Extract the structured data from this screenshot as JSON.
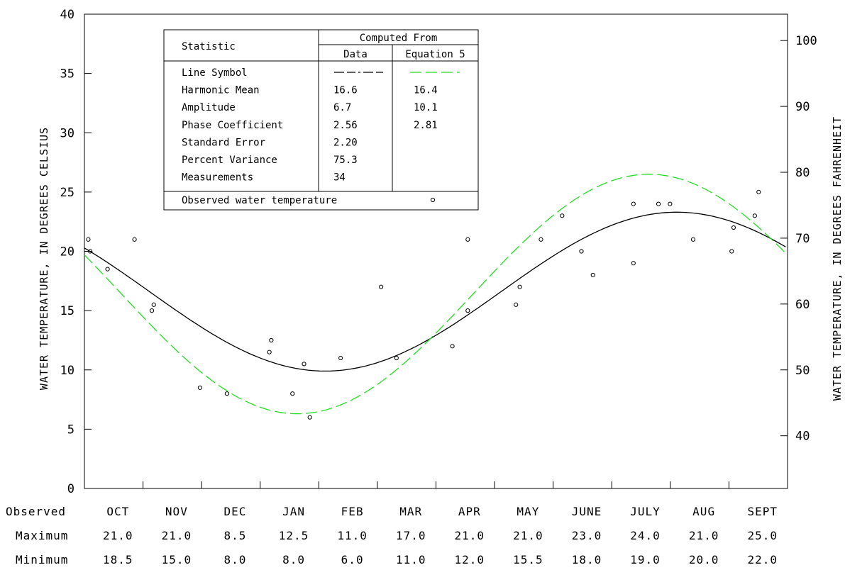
{
  "chart_data": {
    "type": "line",
    "ylabel_left": "WATER TEMPERATURE, IN DEGREES CELSIUS",
    "ylabel_right": "WATER TEMPERATURE, IN DEGREES FAHRENHEIT",
    "ylim": [
      0,
      40
    ],
    "yticks_left": [
      "0",
      "5",
      "10",
      "15",
      "20",
      "25",
      "30",
      "35",
      "40"
    ],
    "yticks_right": [
      "40",
      "50",
      "60",
      "70",
      "80",
      "90",
      "100"
    ],
    "months": [
      "OCT",
      "NOV",
      "DEC",
      "JAN",
      "FEB",
      "MAR",
      "APR",
      "MAY",
      "JUNE",
      "JULY",
      "AUG",
      "SEPT"
    ],
    "xlim_days": [
      0,
      365
    ],
    "series": [
      {
        "name": "Data",
        "mean": 16.6,
        "amplitude": 6.7,
        "phase": 2.56,
        "color": "#000000",
        "values": [
          [
            0,
            20.2
          ],
          [
            30,
            17.0
          ],
          [
            60,
            13.3
          ],
          [
            91,
            10.8
          ],
          [
            121,
            10.1
          ],
          [
            152,
            11.5
          ],
          [
            182,
            14.7
          ],
          [
            213,
            18.4
          ],
          [
            243,
            21.5
          ],
          [
            274,
            23.3
          ],
          [
            304,
            23.3
          ],
          [
            334,
            21.4
          ],
          [
            365,
            20.2
          ]
        ]
      },
      {
        "name": "Equation 5",
        "mean": 16.4,
        "amplitude": 10.1,
        "phase": 2.81,
        "color": "#22dd22",
        "values": [
          [
            0,
            19.7
          ],
          [
            30,
            14.3
          ],
          [
            60,
            9.3
          ],
          [
            91,
            6.6
          ],
          [
            121,
            6.8
          ],
          [
            152,
            10.0
          ],
          [
            182,
            15.3
          ],
          [
            213,
            21.1
          ],
          [
            243,
            25.5
          ],
          [
            274,
            26.5
          ],
          [
            304,
            24.0
          ],
          [
            334,
            19.3
          ],
          [
            365,
            19.7
          ]
        ]
      }
    ],
    "observations": {
      "name": "Observed water temperature",
      "points": [
        [
          2,
          21.0
        ],
        [
          3,
          20.0
        ],
        [
          12,
          18.5
        ],
        [
          26,
          21.0
        ],
        [
          35,
          15.0
        ],
        [
          36,
          15.5
        ],
        [
          60,
          8.5
        ],
        [
          74,
          8.0
        ],
        [
          96,
          11.5
        ],
        [
          97,
          12.5
        ],
        [
          108,
          8.0
        ],
        [
          114,
          10.5
        ],
        [
          117,
          6.0
        ],
        [
          133,
          11.0
        ],
        [
          154,
          17.0
        ],
        [
          162,
          11.0
        ],
        [
          191,
          12.0
        ],
        [
          199,
          21.0
        ],
        [
          199,
          15.0
        ],
        [
          224,
          15.5
        ],
        [
          226,
          17.0
        ],
        [
          237,
          21.0
        ],
        [
          248,
          23.0
        ],
        [
          258,
          20.0
        ],
        [
          264,
          18.0
        ],
        [
          285,
          19.0
        ],
        [
          285,
          24.0
        ],
        [
          298,
          24.0
        ],
        [
          304,
          24.0
        ],
        [
          316,
          21.0
        ],
        [
          336,
          20.0
        ],
        [
          337,
          22.0
        ],
        [
          348,
          23.0
        ],
        [
          350,
          25.0
        ]
      ]
    },
    "grid": false,
    "legend_position": "top-left"
  },
  "table": {
    "header_statistic": "Statistic",
    "header_computed": "Computed From",
    "col_data": "Data",
    "col_eq": "Equation 5",
    "rows": [
      {
        "label": "Line Symbol",
        "data": "",
        "eq": ""
      },
      {
        "label": "Harmonic Mean",
        "data": "16.6",
        "eq": "16.4"
      },
      {
        "label": "Amplitude",
        "data": "6.7",
        "eq": "10.1"
      },
      {
        "label": "Phase Coefficient",
        "data": "2.56",
        "eq": "2.81"
      },
      {
        "label": "Standard Error",
        "data": "2.20",
        "eq": ""
      },
      {
        "label": "Percent Variance",
        "data": "75.3",
        "eq": ""
      },
      {
        "label": "Measurements",
        "data": "34",
        "eq": ""
      }
    ],
    "observed_label": "Observed water temperature"
  },
  "bottom_table": {
    "observed_label": "Observed",
    "maximum_label": "Maximum",
    "minimum_label": "Minimum",
    "maximum": [
      "21.0",
      "21.0",
      "8.5",
      "12.5",
      "11.0",
      "17.0",
      "21.0",
      "21.0",
      "23.0",
      "24.0",
      "21.0",
      "25.0"
    ],
    "minimum": [
      "18.5",
      "15.0",
      "8.0",
      "8.0",
      "6.0",
      "11.0",
      "12.0",
      "15.5",
      "18.0",
      "19.0",
      "20.0",
      "22.0"
    ]
  }
}
